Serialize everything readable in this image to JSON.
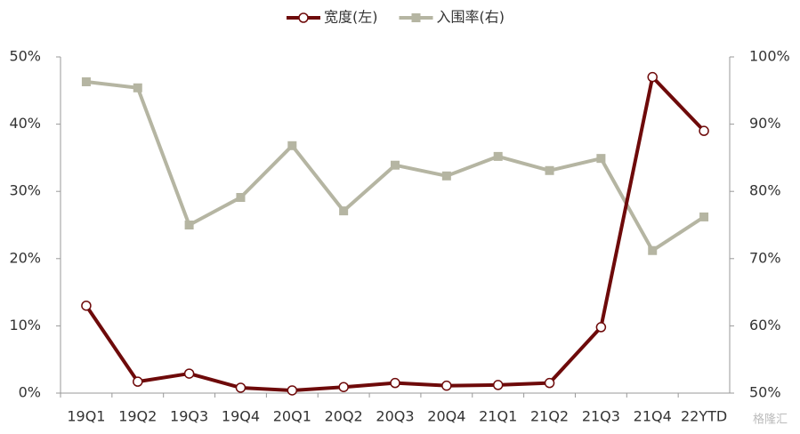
{
  "chart_data": {
    "type": "line",
    "categories": [
      "19Q1",
      "19Q2",
      "19Q3",
      "19Q4",
      "20Q1",
      "20Q2",
      "20Q3",
      "20Q4",
      "21Q1",
      "21Q2",
      "21Q3",
      "21Q4",
      "22YTD"
    ],
    "series": [
      {
        "name": "宽度(左)",
        "color": "#6e0a0a",
        "marker": "circle",
        "values": [
          13,
          1.7,
          2.9,
          0.8,
          0.4,
          0.9,
          1.5,
          1.1,
          1.2,
          1.5,
          9.8,
          47,
          39
        ]
      },
      {
        "name": "入围率(右)",
        "color": "#b5b5a2",
        "marker": "square",
        "axis": "y2",
        "values": [
          96.3,
          95.4,
          75,
          79.1,
          86.8,
          77.1,
          83.9,
          82.3,
          85.2,
          83.1,
          84.9,
          71.2,
          76.2
        ]
      }
    ],
    "ylim": [
      0,
      50
    ],
    "yticks": [
      {
        "value": 0,
        "label": "0%"
      },
      {
        "value": 10,
        "label": "10%"
      },
      {
        "value": 20,
        "label": "20%"
      },
      {
        "value": 30,
        "label": "30%"
      },
      {
        "value": 40,
        "label": "40%"
      },
      {
        "value": 50,
        "label": "50%"
      }
    ],
    "y2lim": [
      50,
      100
    ],
    "y2ticks": [
      {
        "value": 50,
        "label": "50%"
      },
      {
        "value": 60,
        "label": "60%"
      },
      {
        "value": 70,
        "label": "70%"
      },
      {
        "value": 80,
        "label": "80%"
      },
      {
        "value": 90,
        "label": "90%"
      },
      {
        "value": 100,
        "label": "100%"
      }
    ],
    "grid": false,
    "legend": "top",
    "watermark": "格隆汇"
  }
}
